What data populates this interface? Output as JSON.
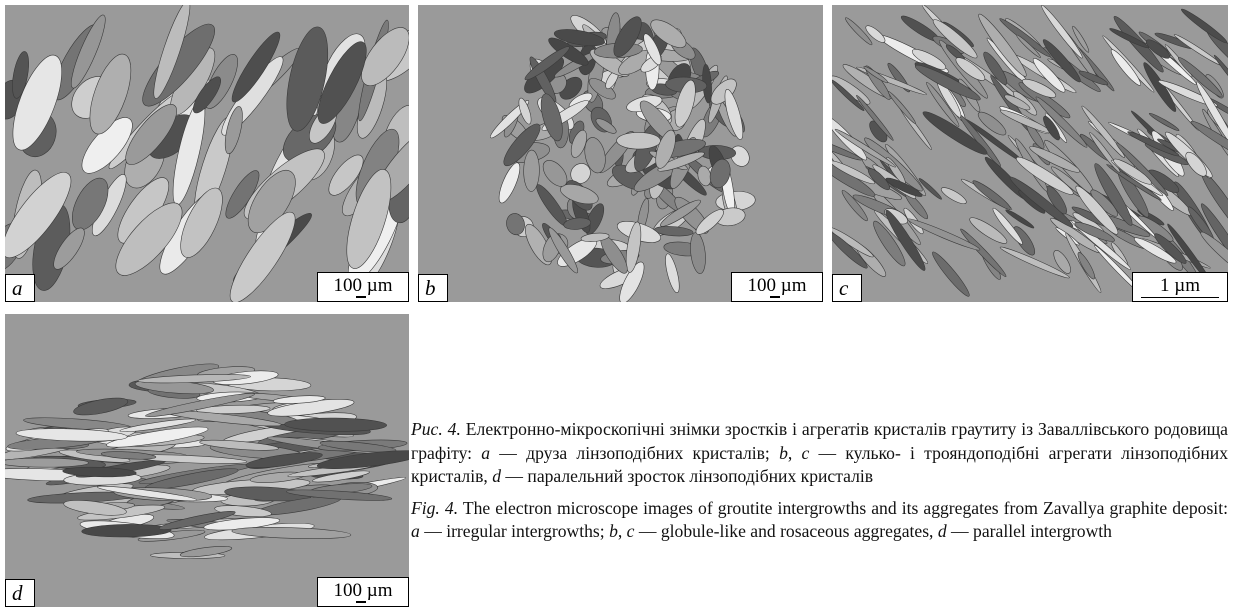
{
  "panels": [
    {
      "label": "a",
      "scale": "100 µm"
    },
    {
      "label": "b",
      "scale": "100 µm"
    },
    {
      "label": "c",
      "scale": "1 µm"
    },
    {
      "label": "d",
      "scale": "100 µm"
    }
  ],
  "caption_ua": [
    "Рис. 4.",
    " Електронно-мікроскопічні знімки зростків і агрегатів кристалів граутиту із Заваллівського родовища графіту: ",
    "a",
    " — друза лінзоподібних кристалів; ",
    "b",
    ", ",
    "c",
    " — кулько- і трояндоподібні агрегати лінзоподібних кристалів, ",
    "d",
    " — паралельний зросток лінзоподібних кристалів"
  ],
  "caption_en": [
    "Fig. 4.",
    " The electron microscope images of groutite intergrowths and its aggregates from Zavallya graphite deposit: ",
    "a",
    " — irregular intergrowths; ",
    "b",
    ", ",
    "c",
    " — globule-like and rosaceous aggregates, ",
    "d",
    " — parallel intergrowth"
  ]
}
